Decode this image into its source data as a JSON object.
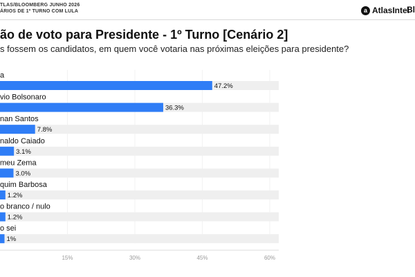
{
  "header": {
    "line1": "TLAS/BLOOMBERG JUNHO 2026",
    "line2": "ÁRIOS DE 1º TURNO COM LULA",
    "brand_icon": "a",
    "brand_name": "AtlasIntel",
    "brand_secondary": "Bl"
  },
  "title": "ão de voto para Presidente - 1º Turno [Cenário 2]",
  "subtitle": "s fossem os candidatos, em quem você votaria nas próximas eleições para presidente?",
  "colors": {
    "bar": "#2f7df6",
    "track": "#efefef",
    "axis": "#dddddd"
  },
  "chart_data": {
    "type": "bar",
    "orientation": "horizontal",
    "categories": [
      "a",
      "vio Bolsonaro",
      "nan Santos",
      "naldo Caiado",
      "meu Zema",
      "quim Barbosa",
      "o branco / nulo",
      "o sei"
    ],
    "values": [
      47.2,
      36.3,
      7.8,
      3.1,
      3.0,
      1.2,
      1.2,
      1.0
    ],
    "value_labels": [
      "47.2%",
      "36.3%",
      "7.8%",
      "3.1%",
      "3.0%",
      "1.2%",
      "1.2%",
      "1%"
    ],
    "xlim": [
      0,
      62
    ],
    "xticks": [
      15,
      30,
      45,
      60
    ],
    "xtick_labels": [
      "15%",
      "30%",
      "45%",
      "60%"
    ],
    "title": "",
    "xlabel": "",
    "ylabel": ""
  }
}
